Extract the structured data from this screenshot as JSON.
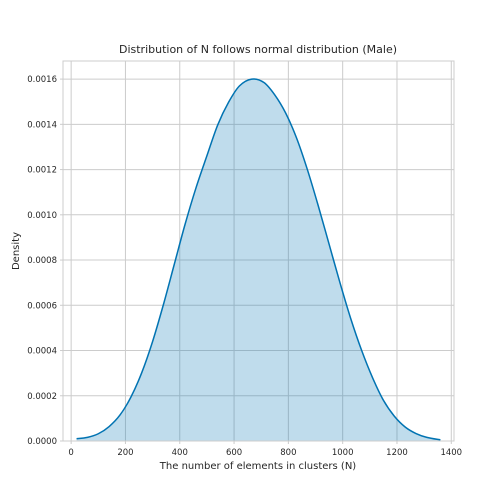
{
  "chart_data": {
    "type": "area",
    "title": "Distribution of N follows normal distribution (Male)",
    "xlabel": "The number of elements in clusters (N)",
    "ylabel": "Density",
    "xlim": [
      -30,
      1410
    ],
    "ylim": [
      0,
      0.00168
    ],
    "x_ticks": [
      0,
      200,
      400,
      600,
      800,
      1000,
      1200,
      1400
    ],
    "x_tick_labels": [
      "0",
      "200",
      "400",
      "600",
      "800",
      "1000",
      "1200",
      "1400"
    ],
    "y_ticks": [
      0,
      0.0002,
      0.0004,
      0.0006,
      0.0008,
      0.001,
      0.0012,
      0.0014,
      0.0016
    ],
    "y_tick_labels": [
      "0.0000",
      "0.0002",
      "0.0004",
      "0.0006",
      "0.0008",
      "0.0010",
      "0.0012",
      "0.0014",
      "0.0016"
    ],
    "grid": true,
    "series": [
      {
        "x": [
          20,
          60,
          100,
          140,
          180,
          220,
          260,
          300,
          340,
          380,
          420,
          460,
          500,
          540,
          580,
          620,
          665,
          710,
          750,
          790,
          830,
          870,
          910,
          950,
          990,
          1030,
          1070,
          1110,
          1150,
          1190,
          1230,
          1270,
          1310,
          1360
        ],
        "y": [
          1e-05,
          1.6e-05,
          3.2e-05,
          6.4e-05,
          0.000115,
          0.000194,
          0.000302,
          0.00044,
          0.000604,
          0.000782,
          0.00096,
          0.00112,
          0.001261,
          0.001398,
          0.001498,
          0.00157,
          0.0016,
          0.001585,
          0.00153,
          0.00145,
          0.00134,
          0.0012,
          0.00104,
          0.00087,
          0.0007,
          0.00054,
          0.0004,
          0.00028,
          0.00018,
          0.00011,
          6.2e-05,
          3.3e-05,
          1.6e-05,
          5e-06
        ]
      }
    ],
    "colors": {
      "line": "#0173b2",
      "fill": "#0173b2",
      "fill_opacity": 0.25
    }
  }
}
